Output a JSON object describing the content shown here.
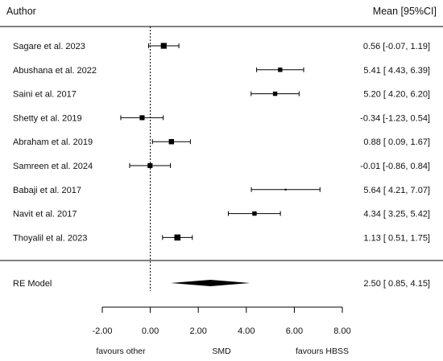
{
  "chart_data": {
    "type": "forest",
    "header": {
      "left": "Author",
      "right": "Mean [95%CI]"
    },
    "studies": [
      {
        "label": "Sagare et al. 2023",
        "est": 0.56,
        "lo": -0.07,
        "hi": 1.19,
        "ci_text": "0.56 [-0.07, 1.19]",
        "weight": 1.0
      },
      {
        "label": "Abushana et al. 2022",
        "est": 5.41,
        "lo": 4.43,
        "hi": 6.39,
        "ci_text": "5.41 [ 4.43, 6.39]",
        "weight": 0.75
      },
      {
        "label": "Saini et al. 2017",
        "est": 5.2,
        "lo": 4.2,
        "hi": 6.2,
        "ci_text": "5.20 [ 4.20, 6.20]",
        "weight": 0.75
      },
      {
        "label": "Shetty et al. 2019",
        "est": -0.34,
        "lo": -1.23,
        "hi": 0.54,
        "ci_text": "-0.34 [-1.23, 0.54]",
        "weight": 0.85
      },
      {
        "label": "Abraham et al. 2019",
        "est": 0.88,
        "lo": 0.09,
        "hi": 1.67,
        "ci_text": "0.88 [ 0.09, 1.67]",
        "weight": 0.9
      },
      {
        "label": "Samreen et al. 2024",
        "est": -0.01,
        "lo": -0.86,
        "hi": 0.84,
        "ci_text": "-0.01 [-0.86, 0.84]",
        "weight": 0.85
      },
      {
        "label": "Babaji et al. 2017",
        "est": 5.64,
        "lo": 4.21,
        "hi": 7.07,
        "ci_text": "5.64 [ 4.21, 7.07]",
        "weight": 0.3
      },
      {
        "label": "Navit et al. 2017",
        "est": 4.34,
        "lo": 3.25,
        "hi": 5.42,
        "ci_text": "4.34 [ 3.25, 5.42]",
        "weight": 0.75
      },
      {
        "label": "Thoyalil et al. 2023",
        "est": 1.13,
        "lo": 0.51,
        "hi": 1.75,
        "ci_text": "1.13 [ 0.51, 1.75]",
        "weight": 1.05
      }
    ],
    "summary": {
      "label": "RE Model",
      "est": 2.5,
      "lo": 0.85,
      "hi": 4.15,
      "ci_text": "2.50 [ 0.85, 4.15]"
    },
    "x_ticks": [
      -2,
      0,
      2,
      4,
      6,
      8
    ],
    "x_tick_labels": [
      "-2.00",
      "0.00",
      "2.00",
      "4.00",
      "6.00",
      "8.00"
    ],
    "xlim": [
      -2,
      8
    ],
    "reference_line": 0,
    "xlabel": "SMD",
    "favours_left": "favours other",
    "favours_right": "favours HBSS"
  }
}
